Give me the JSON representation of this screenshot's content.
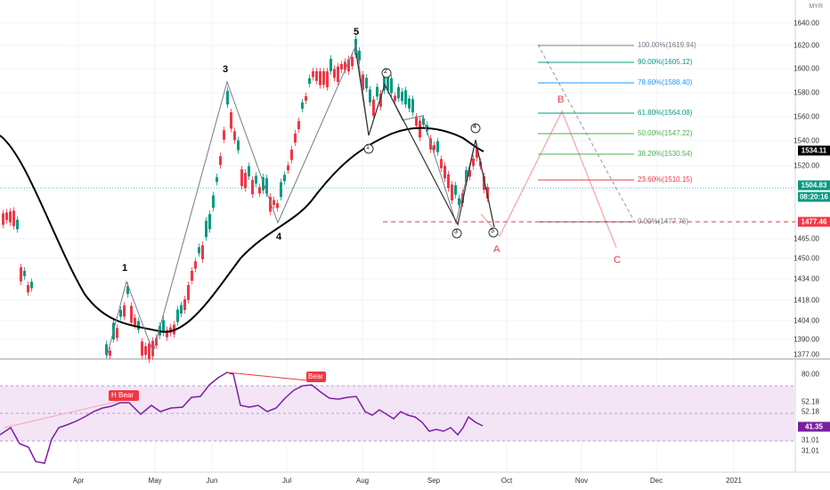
{
  "header": {
    "currency": "MYR"
  },
  "price_axis": {
    "ticks": [
      "1640.00",
      "1620.00",
      "1600.00",
      "1580.00",
      "1560.00",
      "1540.00",
      "1520.00",
      "1500.00",
      "1490.00",
      "1465.00",
      "1450.00",
      "1434.00",
      "1418.00",
      "1404.00",
      "1390.00",
      "1377.00"
    ],
    "current_price": "1534.11",
    "last_price": "1504.83",
    "countdown": "08:20:16",
    "support_price": "1477.46"
  },
  "rsi_axis": {
    "ticks": [
      "80.00",
      "52.18",
      "31.01"
    ],
    "level_a": "52.18",
    "current": "41.35",
    "level_b": "31.01"
  },
  "time_axis": [
    "Apr",
    "May",
    "Jun",
    "Jul",
    "Aug",
    "Sep",
    "Oct",
    "Nov",
    "Dec",
    "2021"
  ],
  "fib_levels": [
    {
      "label": "100.00%(1619.94)",
      "color": "#787b86"
    },
    {
      "label": "90.00%(1605.12)",
      "color": "#089981"
    },
    {
      "label": "78.60%(1588.40)",
      "color": "#2196f3"
    },
    {
      "label": "61.80%(1564.08)",
      "color": "#089981"
    },
    {
      "label": "50.00%(1547.22)",
      "color": "#4caf50"
    },
    {
      "label": "38.20%(1530.54)",
      "color": "#4caf50"
    },
    {
      "label": "23.60%(1510.15)",
      "color": "#f23645"
    },
    {
      "label": "0.00%(1477.76)",
      "color": "#787b86"
    }
  ],
  "waves": {
    "main": [
      "1",
      "3",
      "4",
      "5"
    ],
    "sub": [
      "1",
      "2",
      "3",
      "4",
      "5"
    ],
    "correction": [
      "A",
      "B",
      "C"
    ]
  },
  "rsi_labels": {
    "hidden_bear": "H Bear",
    "bear": "Bear"
  },
  "colors": {
    "up": "#089981",
    "down": "#f23645",
    "rsi": "#7b1fa2",
    "ma": "#000000",
    "fib_support": "#f23645"
  }
}
